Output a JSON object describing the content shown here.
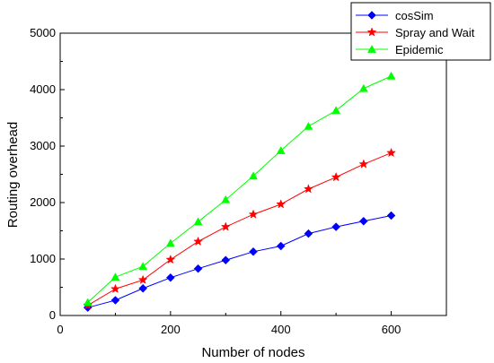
{
  "chart_data": {
    "type": "line",
    "title": "",
    "xlabel": "Number of nodes",
    "ylabel": "Routing overhead",
    "xlim": [
      0,
      700
    ],
    "ylim": [
      0,
      5000
    ],
    "xticks": [
      0,
      200,
      400,
      600
    ],
    "yticks": [
      0,
      1000,
      2000,
      3000,
      4000,
      5000
    ],
    "x": [
      50,
      100,
      150,
      200,
      250,
      300,
      350,
      400,
      450,
      500,
      550,
      600
    ],
    "grid": false,
    "legend_position": "top-right",
    "series": [
      {
        "name": "cosSim",
        "color": "#0000ff",
        "marker": "diamond",
        "values": [
          140,
          270,
          480,
          670,
          830,
          980,
          1130,
          1230,
          1450,
          1570,
          1670,
          1770
        ]
      },
      {
        "name": "Spray and Wait",
        "color": "#ff0000",
        "marker": "star",
        "values": [
          180,
          470,
          630,
          990,
          1310,
          1570,
          1790,
          1970,
          2240,
          2450,
          2680,
          2880
        ]
      },
      {
        "name": "Epidemic",
        "color": "#00ff00",
        "marker": "triangle",
        "values": [
          230,
          680,
          870,
          1280,
          1660,
          2050,
          2470,
          2920,
          3350,
          3630,
          4020,
          4240
        ]
      }
    ]
  }
}
